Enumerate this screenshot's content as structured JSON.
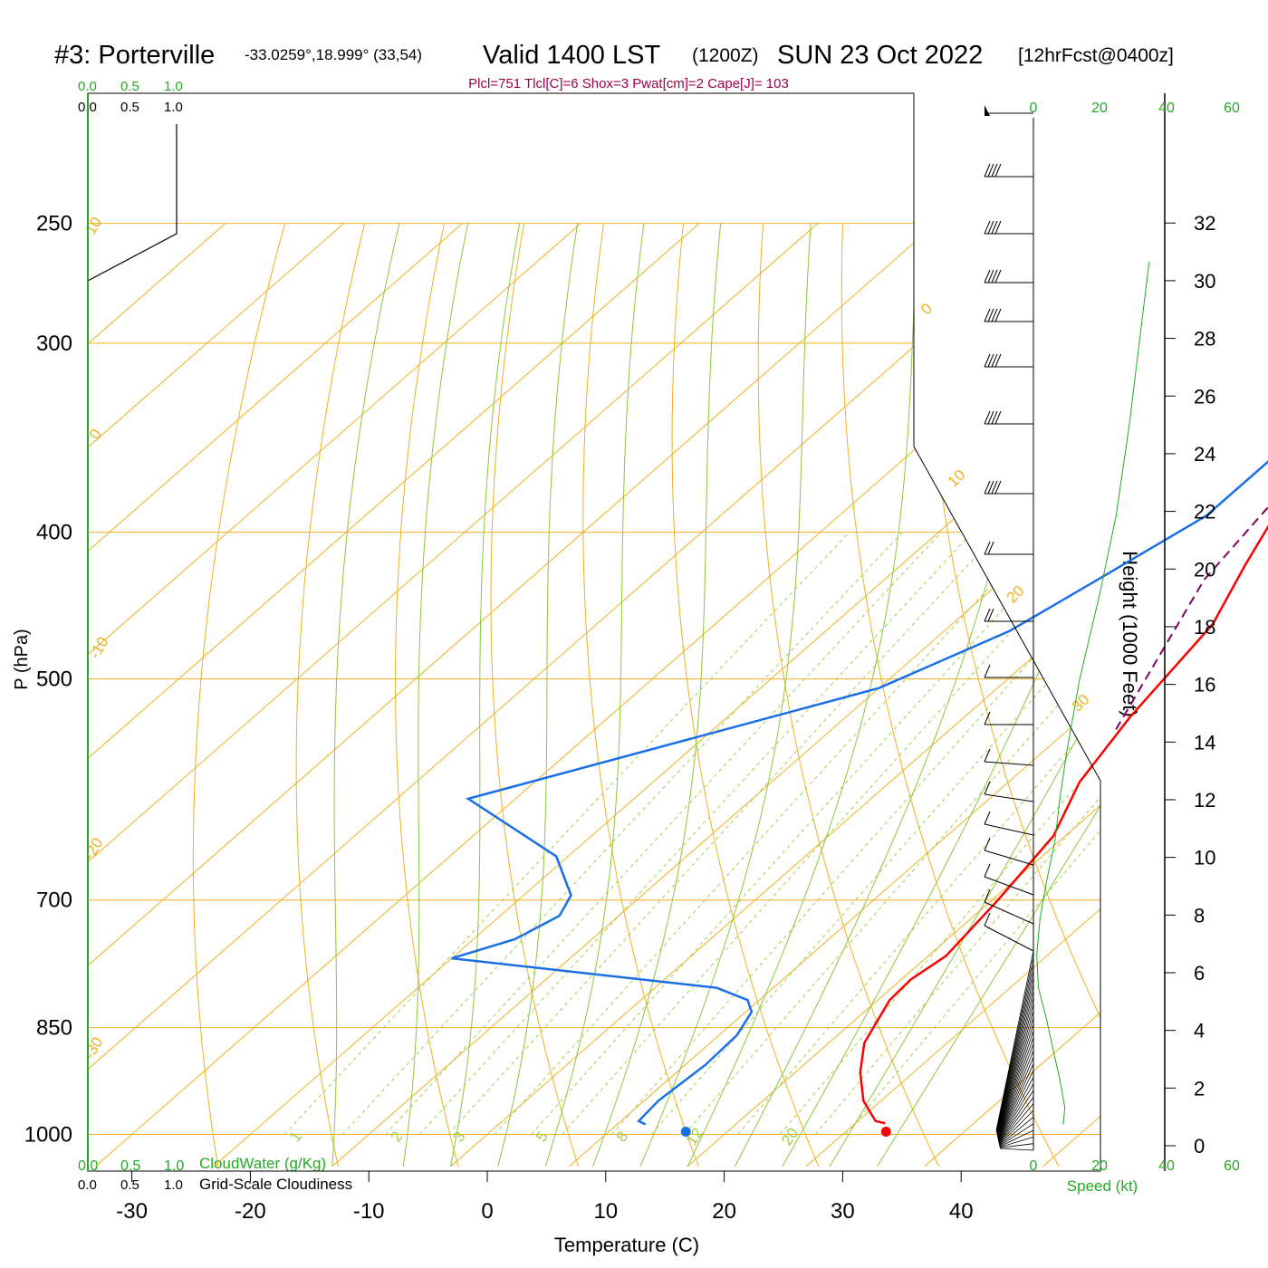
{
  "header": {
    "station": "#3: Porterville",
    "coords": "-33.0259°,18.999° (33,54)",
    "valid": "Valid 1400 LST",
    "utc": "(1200Z)",
    "date": "SUN 23 Oct 2022",
    "forecast": "[12hrFcst@0400z]",
    "indices": "Plcl=751 Tlcl[C]=6 Shox=3 Pwat[cm]=2 Cape[J]= 103"
  },
  "cloud_scale": {
    "top_green": [
      "0.0",
      "0.5",
      "1.0"
    ],
    "top_black": [
      "0.0",
      "0.5",
      "1.0"
    ],
    "bottom_green": [
      "0.0",
      "0.5",
      "1.0"
    ],
    "bottom_black": [
      "0.0",
      "0.5",
      "1.0"
    ],
    "cloudwater_label": "CloudWater (g/Kg)",
    "cloudiness_label": "Grid-Scale Cloudiness"
  },
  "axes": {
    "xlabel": "Temperature (C)",
    "ylabel": "P (hPa)",
    "height_label": "Height (1000 Feet)",
    "speed_label": "Speed (kt)",
    "pressure_ticks": [
      "250",
      "300",
      "400",
      "500",
      "700",
      "850",
      "1000"
    ],
    "temp_ticks": [
      "-30",
      "-20",
      "-10",
      "0",
      "10",
      "20",
      "30",
      "40"
    ],
    "height_ticks": [
      "0",
      "2",
      "4",
      "6",
      "8",
      "10",
      "12",
      "14",
      "16",
      "18",
      "20",
      "22",
      "24",
      "26",
      "28",
      "30",
      "32"
    ],
    "speed_ticks": [
      "0",
      "20",
      "40",
      "60"
    ],
    "isotherm_labels": [
      "10",
      "0",
      "-10",
      "-20",
      "-30",
      "0",
      "10",
      "20",
      "30"
    ],
    "mixing_ratio_labels": [
      "1",
      "2",
      "3",
      "5",
      "8",
      "12",
      "20"
    ]
  },
  "colors": {
    "temperature": "#ff0000",
    "dewpoint": "#1a6fe6",
    "parcel": "#800060",
    "isotherm": "#f0b020",
    "dry_adiabat": "#8cc83c",
    "mixing_ratio": "#a0d050",
    "green_text": "#22aa22",
    "indices": "#a0004a"
  },
  "chart_data": {
    "type": "line",
    "series": [
      {
        "name": "Temperature",
        "points": [
          [
            32.5,
            983
          ],
          [
            31.5,
            980
          ],
          [
            30.5,
            970
          ],
          [
            28.5,
            950
          ],
          [
            25.5,
            910
          ],
          [
            23,
            870
          ],
          [
            21,
            815
          ],
          [
            20.8,
            790
          ],
          [
            21.5,
            762
          ],
          [
            20.5,
            700
          ],
          [
            19,
            635
          ],
          [
            16,
            585
          ],
          [
            14,
            530
          ],
          [
            12,
            460
          ],
          [
            9,
            420
          ],
          [
            6,
            380
          ],
          [
            4,
            330
          ],
          [
            1,
            290
          ],
          [
            -2.2,
            260
          ]
        ]
      },
      {
        "name": "Dewpoint",
        "points": [
          [
            12.4,
            985
          ],
          [
            11.5,
            980
          ],
          [
            11.2,
            950
          ],
          [
            11.7,
            900
          ],
          [
            11.5,
            860
          ],
          [
            10.5,
            830
          ],
          [
            9,
            815
          ],
          [
            5.2,
            800
          ],
          [
            -20,
            765
          ],
          [
            -16.5,
            743
          ],
          [
            -15,
            717
          ],
          [
            -16,
            695
          ],
          [
            -21,
            655
          ],
          [
            -34,
            600
          ],
          [
            -10,
            507
          ],
          [
            -4.5,
            465
          ],
          [
            -2,
            430
          ],
          [
            1,
            390
          ],
          [
            1,
            355
          ],
          [
            -2,
            300
          ],
          [
            -6,
            260
          ]
        ]
      },
      {
        "name": "Parcel",
        "points": [
          [
            14,
            540
          ],
          [
            7,
            430
          ],
          [
            4,
            350
          ]
        ]
      }
    ],
    "surface_temperature": 32.7,
    "surface_dewpoint": 15.8,
    "cloudiness": [
      [
        0,
        300
      ],
      [
        0.5,
        300
      ],
      [
        1.0,
        300
      ],
      [
        1.0,
        260
      ]
    ],
    "wind_speed_profile": [
      [
        9,
        985
      ],
      [
        9.5,
        960
      ],
      [
        8,
        920
      ],
      [
        6,
        880
      ],
      [
        4,
        840
      ],
      [
        1.5,
        800
      ],
      [
        1,
        760
      ],
      [
        2,
        720
      ],
      [
        4,
        680
      ],
      [
        6.5,
        640
      ],
      [
        8,
        600
      ],
      [
        10,
        560
      ],
      [
        14,
        500
      ],
      [
        20,
        440
      ],
      [
        25,
        390
      ],
      [
        29,
        340
      ],
      [
        32,
        300
      ],
      [
        35,
        265
      ]
    ],
    "ylim": [
      250,
      1050
    ],
    "xlim": [
      -34,
      36
    ]
  }
}
